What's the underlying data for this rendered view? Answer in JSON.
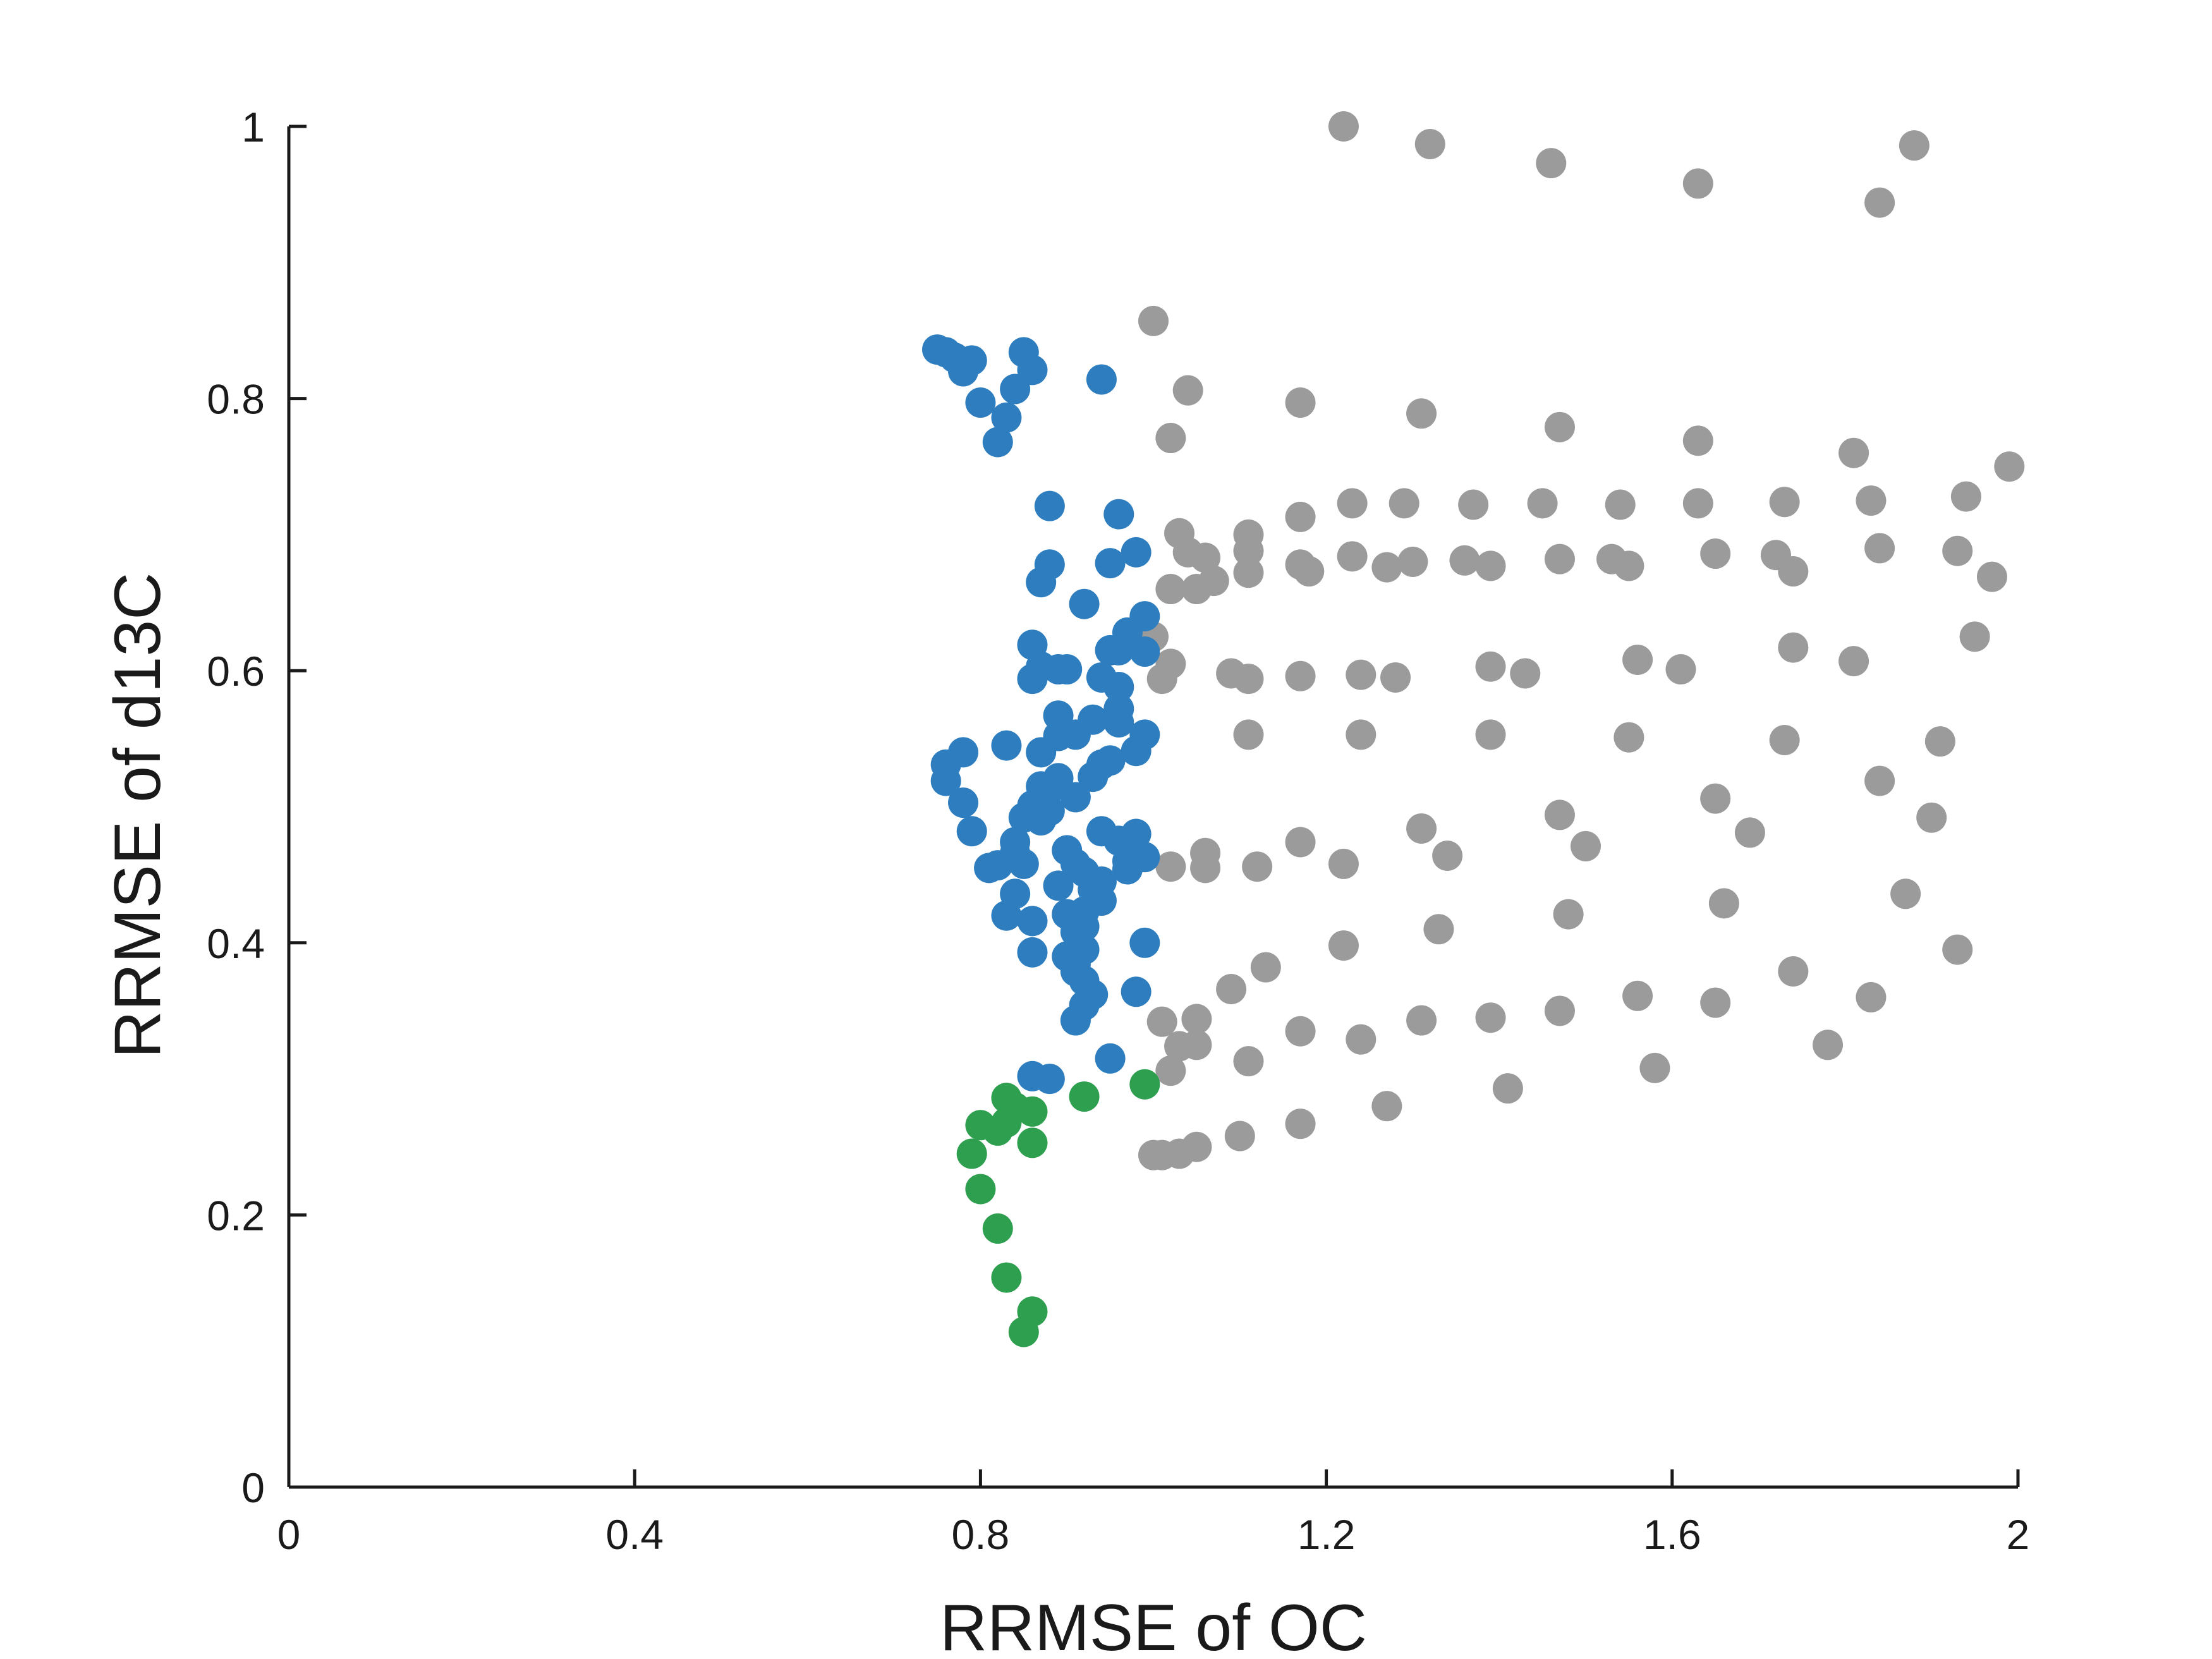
{
  "chart_data": {
    "type": "scatter",
    "title": "",
    "xlabel": "RRMSE of OC",
    "ylabel": "RRMSE of d13C",
    "xlim": [
      0,
      2
    ],
    "ylim": [
      0,
      1
    ],
    "x_ticks": [
      0,
      0.4,
      0.8,
      1.2,
      1.6,
      2
    ],
    "x_tick_labels": [
      "0",
      "0.4",
      "0.8",
      "1.2",
      "1.6",
      "2"
    ],
    "y_ticks": [
      0,
      0.2,
      0.4,
      0.6,
      0.8,
      1
    ],
    "y_tick_labels": [
      "0",
      "0.2",
      "0.4",
      "0.6",
      "0.8",
      "1"
    ],
    "grid": false,
    "legend": "none",
    "series": [
      {
        "color": "#9b9b9b",
        "points": [
          [
            1.22,
            1.0
          ],
          [
            1.32,
            0.987
          ],
          [
            1.46,
            0.973
          ],
          [
            1.63,
            0.958
          ],
          [
            1.88,
            0.986
          ],
          [
            1.84,
            0.944
          ],
          [
            1.0,
            0.857
          ],
          [
            1.04,
            0.806
          ],
          [
            1.17,
            0.797
          ],
          [
            1.31,
            0.789
          ],
          [
            1.47,
            0.779
          ],
          [
            1.02,
            0.771
          ],
          [
            1.63,
            0.769
          ],
          [
            1.81,
            0.76
          ],
          [
            1.99,
            0.75
          ],
          [
            1.17,
            0.713
          ],
          [
            1.23,
            0.723
          ],
          [
            1.29,
            0.723
          ],
          [
            1.37,
            0.722
          ],
          [
            1.45,
            0.723
          ],
          [
            1.54,
            0.722
          ],
          [
            1.63,
            0.723
          ],
          [
            1.73,
            0.724
          ],
          [
            1.83,
            0.725
          ],
          [
            1.94,
            0.728
          ],
          [
            1.03,
            0.701
          ],
          [
            1.11,
            0.7
          ],
          [
            1.04,
            0.687
          ],
          [
            1.06,
            0.683
          ],
          [
            1.11,
            0.688
          ],
          [
            1.23,
            0.684
          ],
          [
            1.3,
            0.68
          ],
          [
            1.36,
            0.681
          ],
          [
            1.39,
            0.677
          ],
          [
            1.47,
            0.682
          ],
          [
            1.53,
            0.682
          ],
          [
            1.55,
            0.677
          ],
          [
            1.65,
            0.686
          ],
          [
            1.72,
            0.685
          ],
          [
            1.84,
            0.69
          ],
          [
            1.93,
            0.688
          ],
          [
            1.05,
            0.66
          ],
          [
            1.07,
            0.666
          ],
          [
            1.02,
            0.66
          ],
          [
            1.11,
            0.672
          ],
          [
            1.17,
            0.678
          ],
          [
            1.18,
            0.673
          ],
          [
            1.27,
            0.676
          ],
          [
            1.74,
            0.673
          ],
          [
            1.97,
            0.669
          ],
          [
            1.0,
            0.625
          ],
          [
            1.02,
            0.605
          ],
          [
            1.01,
            0.594
          ],
          [
            1.09,
            0.598
          ],
          [
            1.11,
            0.594
          ],
          [
            1.17,
            0.596
          ],
          [
            1.24,
            0.597
          ],
          [
            1.28,
            0.595
          ],
          [
            1.39,
            0.603
          ],
          [
            1.43,
            0.598
          ],
          [
            1.56,
            0.608
          ],
          [
            1.61,
            0.601
          ],
          [
            1.74,
            0.617
          ],
          [
            1.81,
            0.607
          ],
          [
            1.95,
            0.625
          ],
          [
            1.11,
            0.553
          ],
          [
            1.24,
            0.553
          ],
          [
            1.39,
            0.553
          ],
          [
            1.55,
            0.551
          ],
          [
            1.73,
            0.549
          ],
          [
            1.91,
            0.548
          ],
          [
            1.84,
            0.519
          ],
          [
            1.65,
            0.506
          ],
          [
            1.9,
            0.492
          ],
          [
            1.47,
            0.494
          ],
          [
            1.31,
            0.484
          ],
          [
            1.69,
            0.481
          ],
          [
            1.17,
            0.474
          ],
          [
            1.5,
            0.471
          ],
          [
            1.34,
            0.464
          ],
          [
            1.06,
            0.466
          ],
          [
            1.12,
            0.456
          ],
          [
            1.22,
            0.458
          ],
          [
            1.06,
            0.455
          ],
          [
            1.02,
            0.456
          ],
          [
            1.87,
            0.436
          ],
          [
            1.66,
            0.429
          ],
          [
            1.48,
            0.421
          ],
          [
            1.33,
            0.41
          ],
          [
            1.22,
            0.398
          ],
          [
            1.93,
            0.395
          ],
          [
            1.13,
            0.382
          ],
          [
            1.74,
            0.379
          ],
          [
            1.09,
            0.366
          ],
          [
            1.56,
            0.361
          ],
          [
            1.83,
            0.36
          ],
          [
            1.65,
            0.356
          ],
          [
            1.47,
            0.35
          ],
          [
            1.39,
            0.345
          ],
          [
            1.31,
            0.343
          ],
          [
            1.05,
            0.344
          ],
          [
            1.01,
            0.342
          ],
          [
            1.17,
            0.335
          ],
          [
            1.24,
            0.329
          ],
          [
            1.05,
            0.325
          ],
          [
            1.03,
            0.324
          ],
          [
            1.78,
            0.325
          ],
          [
            1.11,
            0.313
          ],
          [
            1.58,
            0.308
          ],
          [
            1.02,
            0.306
          ],
          [
            1.41,
            0.293
          ],
          [
            1.27,
            0.28
          ],
          [
            1.17,
            0.267
          ],
          [
            1.1,
            0.258
          ],
          [
            1.05,
            0.25
          ],
          [
            1.03,
            0.245
          ],
          [
            1.01,
            0.244
          ],
          [
            1.0,
            0.244
          ]
        ]
      },
      {
        "color": "#2e7ebf",
        "points": [
          [
            0.75,
            0.836
          ],
          [
            0.76,
            0.834
          ],
          [
            0.77,
            0.83
          ],
          [
            0.78,
            0.82
          ],
          [
            0.79,
            0.828
          ],
          [
            0.85,
            0.834
          ],
          [
            0.86,
            0.821
          ],
          [
            0.84,
            0.807
          ],
          [
            0.94,
            0.814
          ],
          [
            0.8,
            0.797
          ],
          [
            0.83,
            0.786
          ],
          [
            0.82,
            0.768
          ],
          [
            0.88,
            0.721
          ],
          [
            0.96,
            0.715
          ],
          [
            0.98,
            0.687
          ],
          [
            0.95,
            0.679
          ],
          [
            0.88,
            0.678
          ],
          [
            0.87,
            0.665
          ],
          [
            0.92,
            0.649
          ],
          [
            0.99,
            0.64
          ],
          [
            0.97,
            0.628
          ],
          [
            0.96,
            0.615
          ],
          [
            0.95,
            0.615
          ],
          [
            0.99,
            0.614
          ],
          [
            0.86,
            0.619
          ],
          [
            0.87,
            0.603
          ],
          [
            0.89,
            0.601
          ],
          [
            0.9,
            0.601
          ],
          [
            0.86,
            0.594
          ],
          [
            0.94,
            0.595
          ],
          [
            0.96,
            0.588
          ],
          [
            0.96,
            0.572
          ],
          [
            0.89,
            0.567
          ],
          [
            0.93,
            0.564
          ],
          [
            0.96,
            0.562
          ],
          [
            0.91,
            0.553
          ],
          [
            0.89,
            0.552
          ],
          [
            0.99,
            0.553
          ],
          [
            0.98,
            0.541
          ],
          [
            0.87,
            0.54
          ],
          [
            0.83,
            0.545
          ],
          [
            0.95,
            0.534
          ],
          [
            0.94,
            0.531
          ],
          [
            0.93,
            0.522
          ],
          [
            0.76,
            0.531
          ],
          [
            0.78,
            0.54
          ],
          [
            0.76,
            0.519
          ],
          [
            0.89,
            0.521
          ],
          [
            0.87,
            0.515
          ],
          [
            0.88,
            0.513
          ],
          [
            0.91,
            0.507
          ],
          [
            0.78,
            0.503
          ],
          [
            0.86,
            0.501
          ],
          [
            0.88,
            0.497
          ],
          [
            0.87,
            0.49
          ],
          [
            0.85,
            0.492
          ],
          [
            0.84,
            0.474
          ],
          [
            0.79,
            0.482
          ],
          [
            0.84,
            0.466
          ],
          [
            0.81,
            0.455
          ],
          [
            0.82,
            0.457
          ],
          [
            0.85,
            0.458
          ],
          [
            0.9,
            0.468
          ],
          [
            0.91,
            0.458
          ],
          [
            0.92,
            0.452
          ],
          [
            0.89,
            0.442
          ],
          [
            0.94,
            0.482
          ],
          [
            0.96,
            0.475
          ],
          [
            0.98,
            0.48
          ],
          [
            0.97,
            0.46
          ],
          [
            0.97,
            0.454
          ],
          [
            0.99,
            0.463
          ],
          [
            0.93,
            0.439
          ],
          [
            0.94,
            0.431
          ],
          [
            0.94,
            0.445
          ],
          [
            0.84,
            0.436
          ],
          [
            0.83,
            0.42
          ],
          [
            0.86,
            0.416
          ],
          [
            0.9,
            0.421
          ],
          [
            0.92,
            0.423
          ],
          [
            0.91,
            0.408
          ],
          [
            0.92,
            0.412
          ],
          [
            0.99,
            0.4
          ],
          [
            0.86,
            0.393
          ],
          [
            0.9,
            0.39
          ],
          [
            0.91,
            0.384
          ],
          [
            0.92,
            0.395
          ],
          [
            0.91,
            0.379
          ],
          [
            0.92,
            0.372
          ],
          [
            0.93,
            0.362
          ],
          [
            0.92,
            0.354
          ],
          [
            0.98,
            0.364
          ],
          [
            0.91,
            0.343
          ],
          [
            0.95,
            0.315
          ],
          [
            0.86,
            0.302
          ],
          [
            0.88,
            0.3
          ]
        ]
      },
      {
        "color": "#2e9e4f",
        "points": [
          [
            0.99,
            0.296
          ],
          [
            0.92,
            0.287
          ],
          [
            0.83,
            0.286
          ],
          [
            0.84,
            0.279
          ],
          [
            0.86,
            0.276
          ],
          [
            0.8,
            0.266
          ],
          [
            0.83,
            0.268
          ],
          [
            0.82,
            0.262
          ],
          [
            0.86,
            0.253
          ],
          [
            0.79,
            0.245
          ],
          [
            0.8,
            0.219
          ],
          [
            0.82,
            0.19
          ],
          [
            0.83,
            0.154
          ],
          [
            0.86,
            0.129
          ],
          [
            0.85,
            0.114
          ]
        ]
      }
    ]
  }
}
